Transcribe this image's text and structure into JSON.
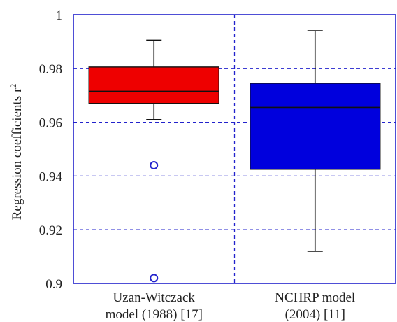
{
  "chart_data": {
    "type": "box",
    "title": "",
    "xlabel": "",
    "ylabel": "Regression coefficients r",
    "ylabel_superscript": "2",
    "ylim": [
      0.9,
      1.0
    ],
    "yticks": [
      0.9,
      0.92,
      0.94,
      0.96,
      0.98,
      1.0
    ],
    "ytick_labels": [
      "0.9",
      "0.92",
      "0.94",
      "0.96",
      "0.98",
      "1"
    ],
    "grid": true,
    "grid_style": "dashed",
    "categories": [
      {
        "line1": "Uzan-Witczack",
        "line2": "model (1988) [17]"
      },
      {
        "line1": "NCHRP model",
        "line2": "(2004) [11]"
      }
    ],
    "boxes": [
      {
        "whisker_low": 0.961,
        "q1": 0.967,
        "median": 0.9715,
        "q3": 0.9805,
        "whisker_high": 0.9905,
        "outliers": [
          0.944,
          0.902
        ],
        "color": "#ee0000"
      },
      {
        "whisker_low": 0.912,
        "q1": 0.9425,
        "median": 0.9655,
        "q3": 0.9745,
        "whisker_high": 0.994,
        "outliers": [],
        "color": "#0000dd"
      }
    ],
    "colors": {
      "axis": "#2222cc",
      "grid": "#2222cc",
      "outlier": "#2222cc",
      "whisker": "#111111"
    }
  }
}
